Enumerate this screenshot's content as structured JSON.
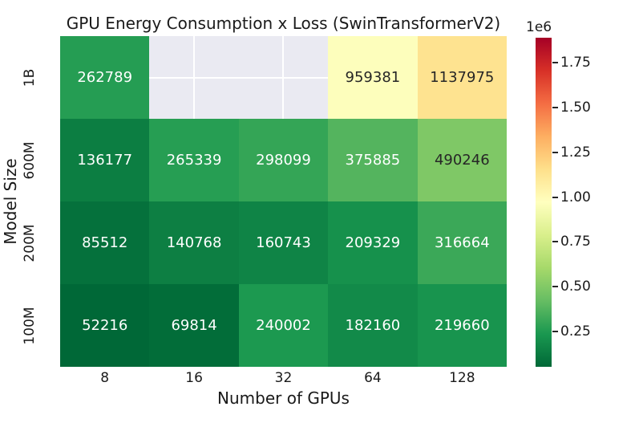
{
  "title": "GPU Energy Consumption x Loss (SwinTransformerV2)",
  "xlabel": "Number of GPUs",
  "ylabel": "Model Size",
  "chart_data": {
    "type": "heatmap",
    "columns": [
      "8",
      "16",
      "32",
      "64",
      "128"
    ],
    "rows": [
      "1B",
      "600M",
      "200M",
      "100M"
    ],
    "values": [
      [
        262789,
        null,
        null,
        959381,
        1137975
      ],
      [
        136177,
        265339,
        298099,
        375885,
        490246
      ],
      [
        85512,
        140768,
        160743,
        209329,
        316664
      ],
      [
        52216,
        69814,
        240002,
        182160,
        219660
      ]
    ],
    "annotations_shown": true,
    "grid": false,
    "colorbar": {
      "offset_label": "1e6",
      "tick_values": [
        250000,
        500000,
        750000,
        1000000,
        1250000,
        1500000,
        1750000
      ],
      "tick_labels": [
        "0.25",
        "0.50",
        "0.75",
        "1.00",
        "1.25",
        "1.50",
        "1.75"
      ],
      "vmin": 52216,
      "vmax": 1890000,
      "colormap": "RdYlGn_r",
      "stops": [
        "#006837",
        "#1a9850",
        "#66bd63",
        "#a6d96a",
        "#d9ef8b",
        "#ffffbf",
        "#fee08b",
        "#fdae61",
        "#f46d43",
        "#d73027",
        "#a50026"
      ]
    }
  },
  "colors": {
    "background": "#ffffff",
    "masked_cell": "#eaeaf2",
    "grid_line": "#ffffff",
    "annotation_light": "#ffffff",
    "annotation_dark": "#262626",
    "text": "#1a1a1a"
  }
}
